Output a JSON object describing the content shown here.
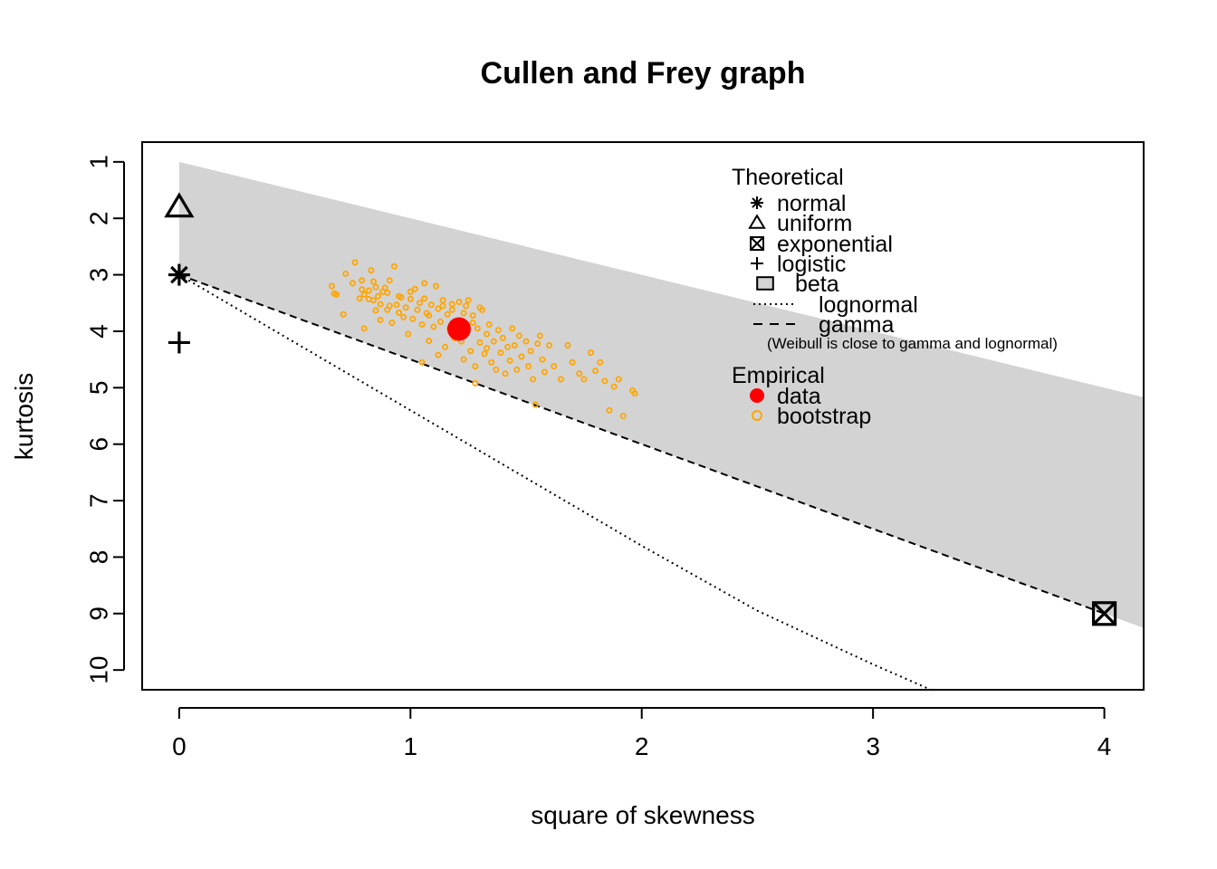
{
  "chart_data": {
    "type": "scatter",
    "title": "Cullen and Frey graph",
    "xlabel": "square of skewness",
    "ylabel": "kurtosis",
    "xlim": [
      -0.16,
      4.17
    ],
    "ylim": [
      10.35,
      0.65
    ],
    "y_axis_reversed": true,
    "x_ticks": [
      "0",
      "1",
      "2",
      "3",
      "4"
    ],
    "y_ticks": [
      "1",
      "2",
      "3",
      "4",
      "5",
      "6",
      "7",
      "8",
      "9",
      "10"
    ],
    "beta_region": {
      "upper": [
        [
          0,
          1
        ],
        [
          4.17,
          5.17
        ]
      ],
      "lower": [
        [
          0,
          3
        ],
        [
          4.17,
          9.255
        ]
      ],
      "color": "#d3d3d3"
    },
    "lognormal_curve": [
      [
        0,
        3.0
      ],
      [
        0.5,
        4.2
      ],
      [
        1.0,
        5.4
      ],
      [
        1.5,
        6.6
      ],
      [
        2.0,
        7.8
      ],
      [
        2.5,
        8.95
      ],
      [
        3.0,
        9.9
      ],
      [
        3.25,
        10.35
      ]
    ],
    "gamma_line": [
      [
        0,
        3
      ],
      [
        4,
        9
      ]
    ],
    "theoretical_points": [
      {
        "name": "normal",
        "skew2": 0,
        "kurtosis": 3,
        "marker": "asterisk"
      },
      {
        "name": "uniform",
        "skew2": 0,
        "kurtosis": 1.8,
        "marker": "triangle"
      },
      {
        "name": "exponential",
        "skew2": 4,
        "kurtosis": 9,
        "marker": "boxed-x"
      },
      {
        "name": "logistic",
        "skew2": 0,
        "kurtosis": 4.2,
        "marker": "plus"
      }
    ],
    "observed": {
      "skew2": 1.21,
      "kurtosis": 3.96,
      "color": "#ff0000"
    },
    "bootstrap": {
      "color": "#ffa500",
      "points": [
        [
          0.66,
          3.2
        ],
        [
          0.67,
          3.33
        ],
        [
          0.68,
          3.35
        ],
        [
          0.71,
          3.7
        ],
        [
          0.72,
          2.98
        ],
        [
          0.75,
          3.15
        ],
        [
          0.76,
          2.78
        ],
        [
          0.78,
          3.42
        ],
        [
          0.79,
          3.26
        ],
        [
          0.8,
          3.35
        ],
        [
          0.8,
          3.95
        ],
        [
          0.82,
          3.28
        ],
        [
          0.82,
          3.43
        ],
        [
          0.83,
          2.92
        ],
        [
          0.84,
          3.12
        ],
        [
          0.84,
          3.45
        ],
        [
          0.85,
          3.63
        ],
        [
          0.86,
          3.38
        ],
        [
          0.87,
          3.52
        ],
        [
          0.87,
          3.8
        ],
        [
          0.88,
          3.3
        ],
        [
          0.89,
          3.23
        ],
        [
          0.9,
          3.62
        ],
        [
          0.91,
          3.55
        ],
        [
          0.91,
          3.1
        ],
        [
          0.92,
          3.85
        ],
        [
          0.93,
          2.85
        ],
        [
          0.94,
          3.53
        ],
        [
          0.95,
          3.38
        ],
        [
          0.95,
          3.67
        ],
        [
          0.97,
          3.75
        ],
        [
          0.98,
          3.58
        ],
        [
          0.99,
          4.05
        ],
        [
          1.0,
          3.43
        ],
        [
          1.01,
          3.78
        ],
        [
          1.02,
          3.25
        ],
        [
          1.03,
          3.62
        ],
        [
          1.04,
          3.5
        ],
        [
          1.05,
          3.88
        ],
        [
          1.06,
          3.15
        ],
        [
          1.07,
          3.68
        ],
        [
          1.08,
          3.72
        ],
        [
          1.08,
          4.17
        ],
        [
          1.09,
          3.53
        ],
        [
          1.1,
          3.92
        ],
        [
          1.11,
          3.2
        ],
        [
          1.12,
          3.6
        ],
        [
          1.13,
          3.83
        ],
        [
          1.14,
          3.45
        ],
        [
          1.15,
          4.28
        ],
        [
          1.16,
          3.7
        ],
        [
          1.17,
          3.95
        ],
        [
          1.18,
          3.52
        ],
        [
          1.19,
          4.12
        ],
        [
          1.2,
          3.83
        ],
        [
          1.21,
          3.48
        ],
        [
          1.22,
          4.18
        ],
        [
          1.23,
          3.68
        ],
        [
          1.23,
          4.5
        ],
        [
          1.24,
          3.9
        ],
        [
          1.25,
          3.45
        ],
        [
          1.26,
          4.35
        ],
        [
          1.27,
          3.72
        ],
        [
          1.28,
          4.62
        ],
        [
          1.28,
          4.92
        ],
        [
          1.29,
          3.95
        ],
        [
          1.3,
          4.2
        ],
        [
          1.31,
          3.62
        ],
        [
          1.32,
          4.4
        ],
        [
          1.33,
          4.05
        ],
        [
          1.34,
          3.88
        ],
        [
          1.35,
          4.55
        ],
        [
          1.36,
          4.18
        ],
        [
          1.37,
          4.68
        ],
        [
          1.38,
          3.98
        ],
        [
          1.39,
          4.38
        ],
        [
          1.4,
          4.12
        ],
        [
          1.41,
          4.75
        ],
        [
          1.42,
          4.28
        ],
        [
          1.43,
          4.52
        ],
        [
          1.44,
          3.95
        ],
        [
          1.45,
          4.25
        ],
        [
          1.46,
          4.68
        ],
        [
          1.47,
          4.08
        ],
        [
          1.48,
          4.45
        ],
        [
          1.5,
          4.18
        ],
        [
          1.51,
          4.62
        ],
        [
          1.52,
          4.35
        ],
        [
          1.53,
          4.85
        ],
        [
          1.54,
          5.3
        ],
        [
          1.55,
          4.22
        ],
        [
          1.56,
          4.08
        ],
        [
          1.57,
          4.5
        ],
        [
          1.58,
          4.72
        ],
        [
          1.6,
          4.25
        ],
        [
          1.62,
          4.62
        ],
        [
          1.65,
          4.85
        ],
        [
          1.68,
          4.25
        ],
        [
          1.7,
          4.55
        ],
        [
          1.73,
          4.75
        ],
        [
          1.75,
          4.85
        ],
        [
          1.78,
          4.38
        ],
        [
          1.8,
          4.7
        ],
        [
          1.82,
          4.55
        ],
        [
          1.84,
          4.88
        ],
        [
          1.86,
          5.4
        ],
        [
          1.88,
          4.98
        ],
        [
          1.9,
          4.85
        ],
        [
          1.92,
          5.5
        ],
        [
          1.96,
          5.05
        ],
        [
          1.97,
          5.1
        ],
        [
          1.05,
          4.55
        ],
        [
          1.12,
          4.42
        ],
        [
          0.79,
          3.1
        ],
        [
          0.85,
          3.22
        ],
        [
          0.9,
          3.32
        ],
        [
          1.0,
          3.3
        ],
        [
          0.96,
          3.4
        ],
        [
          1.06,
          3.42
        ],
        [
          1.14,
          3.55
        ],
        [
          1.18,
          3.62
        ],
        [
          1.24,
          3.55
        ],
        [
          1.3,
          3.58
        ],
        [
          1.27,
          3.85
        ],
        [
          1.33,
          4.3
        ]
      ]
    },
    "legend": {
      "placement": "top-right",
      "theoretical_title": "Theoretical",
      "theoretical": [
        "normal",
        "uniform",
        "exponential",
        "logistic",
        "beta",
        "lognormal",
        "gamma"
      ],
      "note": "(Weibull is close to gamma and lognormal)",
      "empirical_title": "Empirical",
      "empirical": [
        "data",
        "bootstrap"
      ]
    }
  }
}
